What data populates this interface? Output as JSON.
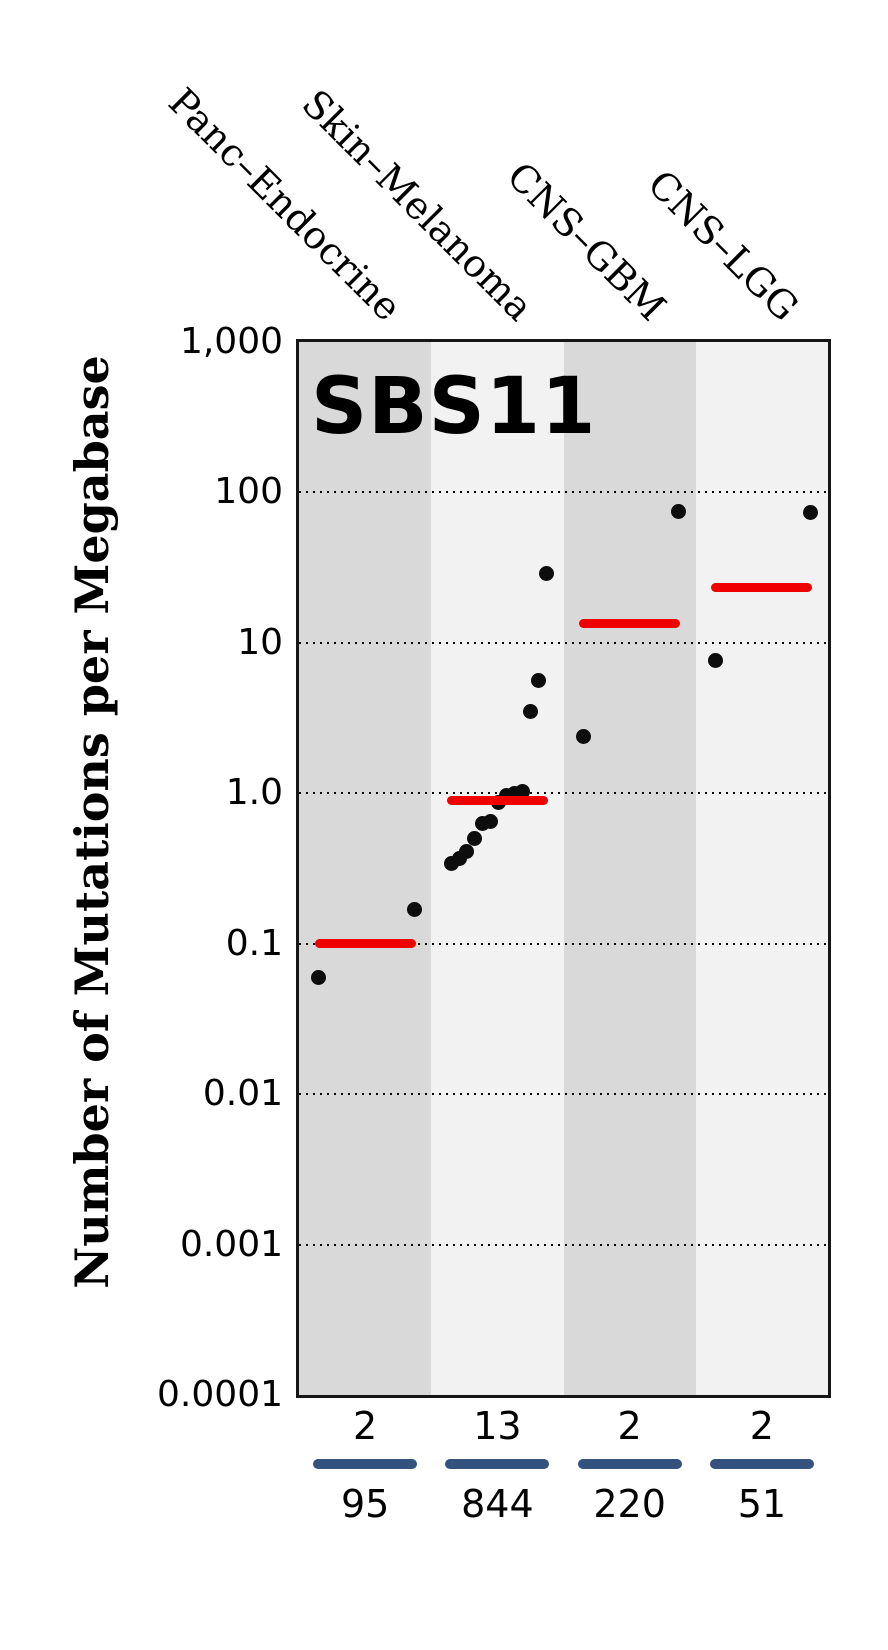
{
  "title": "SBS11",
  "y_axis": {
    "label": "Number of Mutations per Megabase",
    "ticks": [
      {
        "label": "1,000",
        "value": 1000
      },
      {
        "label": "100",
        "value": 100
      },
      {
        "label": "10",
        "value": 10
      },
      {
        "label": "1.0",
        "value": 1.0
      },
      {
        "label": "0.1",
        "value": 0.1
      },
      {
        "label": "0.01",
        "value": 0.01
      },
      {
        "label": "0.001",
        "value": 0.001
      },
      {
        "label": "0.0001",
        "value": 0.0001
      }
    ]
  },
  "chart_data": {
    "type": "scatter",
    "title": "SBS11",
    "ylabel": "Number of Mutations per Megabase",
    "yscale": "log",
    "ylim": [
      0.0001,
      1000
    ],
    "grid_values": [
      100,
      10,
      1.0,
      0.1,
      0.01,
      0.001
    ],
    "categories": [
      {
        "label": "Panc–Endocrine",
        "points": [
          0.06,
          0.17
        ],
        "median": 0.1,
        "samples_with_signature": "2",
        "total_samples": "95"
      },
      {
        "label": "Skin–Melanoma",
        "points": [
          0.34,
          0.37,
          0.41,
          0.5,
          0.63,
          0.65,
          0.87,
          0.96,
          0.99,
          1.02,
          3.5,
          5.6,
          29
        ],
        "median": 0.89,
        "samples_with_signature": "13",
        "total_samples": "844"
      },
      {
        "label": "CNS–GBM",
        "points": [
          2.4,
          75
        ],
        "median": 13.5,
        "samples_with_signature": "2",
        "total_samples": "220"
      },
      {
        "label": "CNS–LGG",
        "points": [
          7.6,
          73
        ],
        "median": 23.5,
        "samples_with_signature": "2",
        "total_samples": "51"
      }
    ],
    "colors": {
      "median_line": "#f10000",
      "point": "#0d0d0d",
      "band_dark": "#d9d9d9",
      "band_light": "#f2f2f2",
      "fraction_bar": "#33527e",
      "axis": "#161616"
    }
  }
}
